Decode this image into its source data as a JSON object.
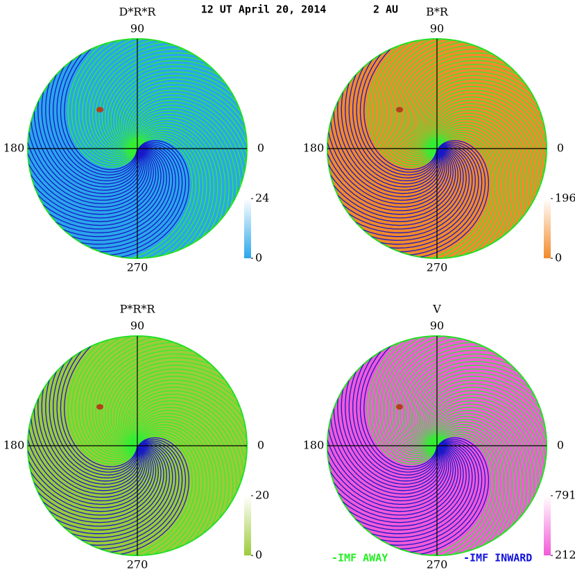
{
  "header": {
    "title": "12 UT April 20, 2014",
    "distance": "2 AU"
  },
  "legend": {
    "away": "-IMF AWAY",
    "inward": "-IMF INWARD"
  },
  "chart_data": [
    {
      "type": "polar",
      "title": "D*R*R",
      "angle_ticks": [
        0,
        90,
        180,
        270
      ],
      "color": "#2aa6ea",
      "clim": [
        0,
        24
      ],
      "cticks": [
        0,
        24
      ]
    },
    {
      "type": "polar",
      "title": "B*R",
      "angle_ticks": [
        0,
        90,
        180,
        270
      ],
      "color": "#f28a2a",
      "clim": [
        0,
        196
      ],
      "cticks": [
        0,
        196
      ]
    },
    {
      "type": "polar",
      "title": "P*R*R",
      "angle_ticks": [
        0,
        90,
        180,
        270
      ],
      "color": "#9ccb3a",
      "clim": [
        0,
        20
      ],
      "cticks": [
        0,
        20
      ]
    },
    {
      "type": "polar",
      "title": "V",
      "angle_ticks": [
        0,
        90,
        180,
        270
      ],
      "color": "#f25ad8",
      "clim": [
        212,
        791
      ],
      "cticks": [
        212,
        791
      ]
    }
  ]
}
